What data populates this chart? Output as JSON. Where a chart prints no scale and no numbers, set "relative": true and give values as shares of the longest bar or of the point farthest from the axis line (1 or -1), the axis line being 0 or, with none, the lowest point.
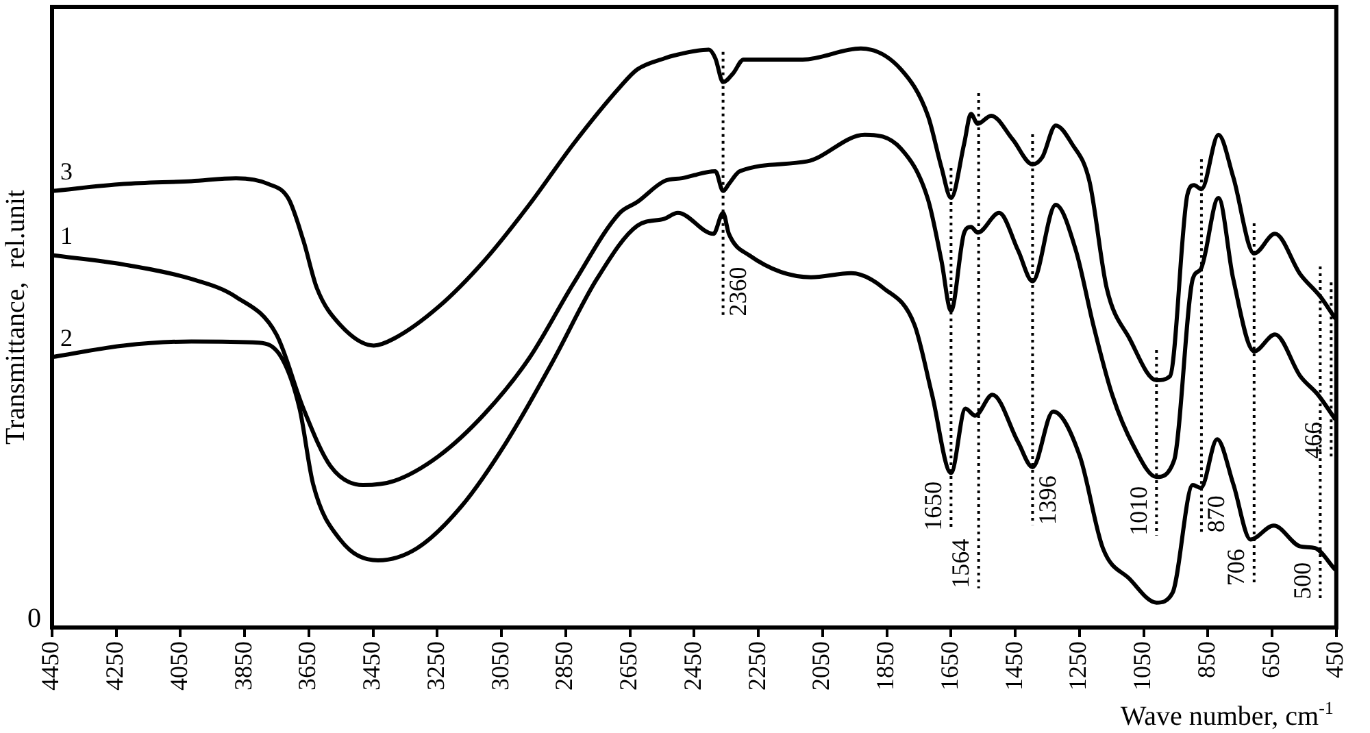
{
  "chart_data": {
    "type": "line",
    "relative": true,
    "xlabel": "Wave number, cm$^{-1}$",
    "ylabel": "Transmittance,  rel.unit",
    "xlim": [
      4450,
      450
    ],
    "xticks": [
      4450,
      4250,
      4050,
      3850,
      3650,
      3450,
      3250,
      3050,
      2850,
      2650,
      2450,
      2250,
      2050,
      1850,
      1650,
      1450,
      1250,
      1050,
      850,
      650,
      450
    ],
    "grid": false,
    "legend": false,
    "marker": "none",
    "line_style": "solid",
    "annotations": [
      "0"
    ],
    "ref_lines": [
      {
        "axis": "x",
        "value": 2360,
        "label": "2360",
        "line_style": "dotted"
      },
      {
        "axis": "x",
        "value": 1650,
        "label": "1650",
        "line_style": "dotted"
      },
      {
        "axis": "x",
        "value": 1564,
        "label": "1564",
        "line_style": "dotted"
      },
      {
        "axis": "x",
        "value": 1396,
        "label": "1396",
        "line_style": "dotted"
      },
      {
        "axis": "x",
        "value": 1010,
        "label": "1010",
        "line_style": "dotted"
      },
      {
        "axis": "x",
        "value": 870,
        "label": "870",
        "line_style": "dotted"
      },
      {
        "axis": "x",
        "value": 706,
        "label": "706",
        "line_style": "dotted"
      },
      {
        "axis": "x",
        "value": 500,
        "label": "500",
        "line_style": "dotted"
      },
      {
        "axis": "x",
        "value": 466,
        "label": "466",
        "line_style": "dotted"
      }
    ],
    "series": [
      {
        "name": "3",
        "color": "#000000",
        "x": [
          4450,
          4227,
          4016,
          3877,
          3776,
          3713,
          3667,
          3625,
          3553,
          3448,
          3385,
          3246,
          3103,
          2964,
          2825,
          2682,
          2627,
          2543,
          2513,
          2404,
          2384,
          2360,
          2329,
          2296,
          2112,
          1931,
          1806,
          1722,
          1680,
          1650,
          1609,
          1588,
          1567,
          1525,
          1458,
          1396,
          1366,
          1324,
          1274,
          1219,
          1165,
          1094,
          1010,
          968,
          914,
          893,
          870,
          817,
          771,
          706,
          641,
          562,
          499,
          455
        ],
        "values": [
          0.754,
          0.766,
          0.771,
          0.776,
          0.766,
          0.74,
          0.668,
          0.586,
          0.523,
          0.487,
          0.499,
          0.554,
          0.634,
          0.73,
          0.836,
          0.933,
          0.964,
          0.983,
          0.988,
          0.998,
          0.983,
          0.942,
          0.957,
          0.981,
          0.981,
          1.0,
          0.964,
          0.884,
          0.795,
          0.742,
          0.836,
          0.887,
          0.87,
          0.884,
          0.843,
          0.8,
          0.812,
          0.867,
          0.836,
          0.771,
          0.586,
          0.499,
          0.427,
          0.434,
          0.747,
          0.764,
          0.757,
          0.851,
          0.778,
          0.646,
          0.68,
          0.61,
          0.571,
          0.535
        ]
      },
      {
        "name": "1",
        "color": "#000000",
        "x": [
          4450,
          4227,
          4016,
          3877,
          3751,
          3667,
          3583,
          3482,
          3385,
          3246,
          3103,
          2964,
          2825,
          2682,
          2627,
          2543,
          2488,
          2384,
          2360,
          2342,
          2308,
          2099,
          1919,
          1806,
          1722,
          1680,
          1650,
          1609,
          1588,
          1567,
          1500,
          1441,
          1396,
          1324,
          1261,
          1207,
          1148,
          1081,
          1010,
          955,
          897,
          872,
          817,
          771,
          706,
          641,
          562,
          507,
          455
        ],
        "values": [
          0.643,
          0.627,
          0.602,
          0.571,
          0.506,
          0.378,
          0.279,
          0.246,
          0.253,
          0.296,
          0.369,
          0.465,
          0.595,
          0.716,
          0.735,
          0.771,
          0.776,
          0.788,
          0.754,
          0.766,
          0.788,
          0.805,
          0.851,
          0.827,
          0.74,
          0.634,
          0.547,
          0.682,
          0.692,
          0.682,
          0.716,
          0.651,
          0.598,
          0.73,
          0.651,
          0.523,
          0.402,
          0.313,
          0.26,
          0.289,
          0.602,
          0.619,
          0.742,
          0.602,
          0.477,
          0.506,
          0.434,
          0.402,
          0.361
        ]
      },
      {
        "name": "2",
        "color": "#000000",
        "x": [
          4450,
          4227,
          4016,
          3806,
          3734,
          3679,
          3637,
          3553,
          3435,
          3313,
          3174,
          3035,
          2892,
          2753,
          2627,
          2543,
          2501,
          2390,
          2360,
          2342,
          2279,
          2086,
          1961,
          1860,
          1764,
          1709,
          1650,
          1605,
          1575,
          1521,
          1441,
          1396,
          1332,
          1249,
          1177,
          1094,
          1010,
          960,
          897,
          872,
          821,
          771,
          717,
          645,
          562,
          516,
          455
        ],
        "values": [
          0.467,
          0.487,
          0.494,
          0.492,
          0.465,
          0.378,
          0.248,
          0.152,
          0.116,
          0.137,
          0.21,
          0.32,
          0.458,
          0.602,
          0.694,
          0.706,
          0.716,
          0.68,
          0.716,
          0.68,
          0.643,
          0.605,
          0.612,
          0.586,
          0.523,
          0.402,
          0.267,
          0.378,
          0.366,
          0.402,
          0.32,
          0.277,
          0.373,
          0.296,
          0.137,
          0.084,
          0.043,
          0.06,
          0.246,
          0.241,
          0.325,
          0.248,
          0.152,
          0.176,
          0.14,
          0.137,
          0.101
        ]
      }
    ]
  }
}
